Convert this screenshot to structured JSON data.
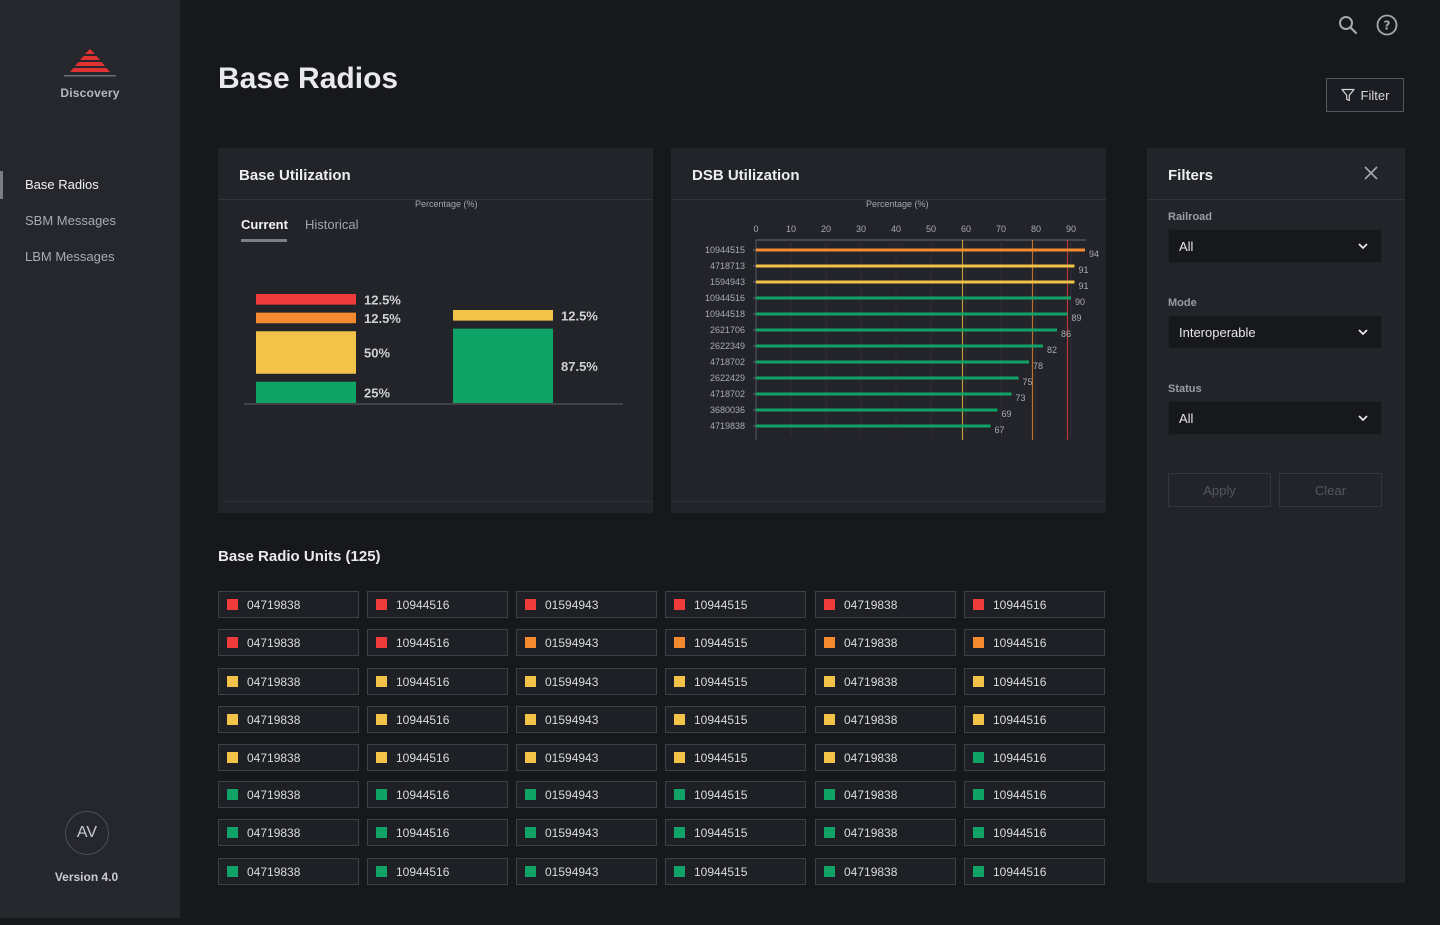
{
  "app": {
    "brand": "Discovery",
    "version": "Version 4.0",
    "avatar_initials": "AV",
    "brand_color": "#e03233"
  },
  "sidebar": {
    "items": [
      {
        "label": "Base Radios",
        "active": true
      },
      {
        "label": "SBM Messages",
        "active": false
      },
      {
        "label": "LBM Messages",
        "active": false
      }
    ]
  },
  "header": {
    "title": "Base Radios",
    "filter_label": "Filter",
    "icons": [
      "search-icon",
      "help-icon"
    ]
  },
  "colors": {
    "red": "#ef3b3b",
    "orange": "#f68a2e",
    "yellow": "#f3c349",
    "green": "#10a367"
  },
  "base_utilization": {
    "title": "Base Utilization",
    "axis_caption": "Percentage (%)",
    "tabs": [
      "Current",
      "Historical"
    ],
    "active_tab": "Current"
  },
  "dsb_utilization": {
    "title": "DSB Utilization",
    "axis_caption": "Percentage (%)"
  },
  "chart_data": [
    {
      "type": "bar",
      "title": "Base Utilization",
      "ylabel": "Percentage (%)",
      "stacked": true,
      "series": [
        {
          "name": "stack-1",
          "segments": [
            {
              "color": "green",
              "value": 25,
              "label": "25%"
            },
            {
              "color": "yellow",
              "value": 50,
              "label": "50%"
            },
            {
              "color": "orange",
              "value": 12.5,
              "label": "12.5%"
            },
            {
              "color": "red",
              "value": 12.5,
              "label": "12.5%"
            }
          ]
        },
        {
          "name": "stack-2",
          "segments": [
            {
              "color": "green",
              "value": 87.5,
              "label": "87.5%"
            },
            {
              "color": "yellow",
              "value": 12.5,
              "label": "12.5%"
            }
          ]
        }
      ]
    },
    {
      "type": "bar",
      "orientation": "horizontal",
      "title": "DSB Utilization",
      "xlabel": "Percentage (%)",
      "xlim": [
        0,
        95
      ],
      "xticks": [
        0,
        10,
        20,
        30,
        40,
        50,
        60,
        70,
        80,
        90
      ],
      "thresholds": [
        {
          "value": 59,
          "color": "yellow"
        },
        {
          "value": 79,
          "color": "orange"
        },
        {
          "value": 89,
          "color": "red"
        }
      ],
      "categories": [
        "10944515",
        "4718713",
        "1594943",
        "10944516",
        "10944518",
        "2621706",
        "2622349",
        "4718702",
        "2622429",
        "4718702",
        "3680036",
        "4719838"
      ],
      "values": [
        94,
        91,
        91,
        90,
        89,
        86,
        82,
        78,
        75,
        73,
        69,
        67
      ],
      "bar_colors": [
        "orange",
        "yellow",
        "yellow",
        "green",
        "green",
        "green",
        "green",
        "green",
        "green",
        "green",
        "green",
        "green"
      ]
    }
  ],
  "filters": {
    "title": "Filters",
    "fields": [
      {
        "label": "Railroad",
        "value": "All"
      },
      {
        "label": "Mode",
        "value": "Interoperable"
      },
      {
        "label": "Status",
        "value": "All"
      }
    ],
    "apply_label": "Apply",
    "clear_label": "Clear"
  },
  "units": {
    "title": "Base Radio Units (125)",
    "ids": [
      "04719838",
      "10944516",
      "01594943",
      "10944515",
      "04719838",
      "10944516"
    ],
    "rows": [
      [
        "red",
        "red",
        "red",
        "red",
        "red",
        "red"
      ],
      [
        "red",
        "red",
        "orange",
        "orange",
        "orange",
        "orange"
      ],
      [
        "yellow",
        "yellow",
        "yellow",
        "yellow",
        "yellow",
        "yellow"
      ],
      [
        "yellow",
        "yellow",
        "yellow",
        "yellow",
        "yellow",
        "yellow"
      ],
      [
        "yellow",
        "yellow",
        "yellow",
        "yellow",
        "yellow",
        "green"
      ],
      [
        "green",
        "green",
        "green",
        "green",
        "green",
        "green"
      ],
      [
        "green",
        "green",
        "green",
        "green",
        "green",
        "green"
      ],
      [
        "green",
        "green",
        "green",
        "green",
        "green",
        "green"
      ]
    ]
  }
}
